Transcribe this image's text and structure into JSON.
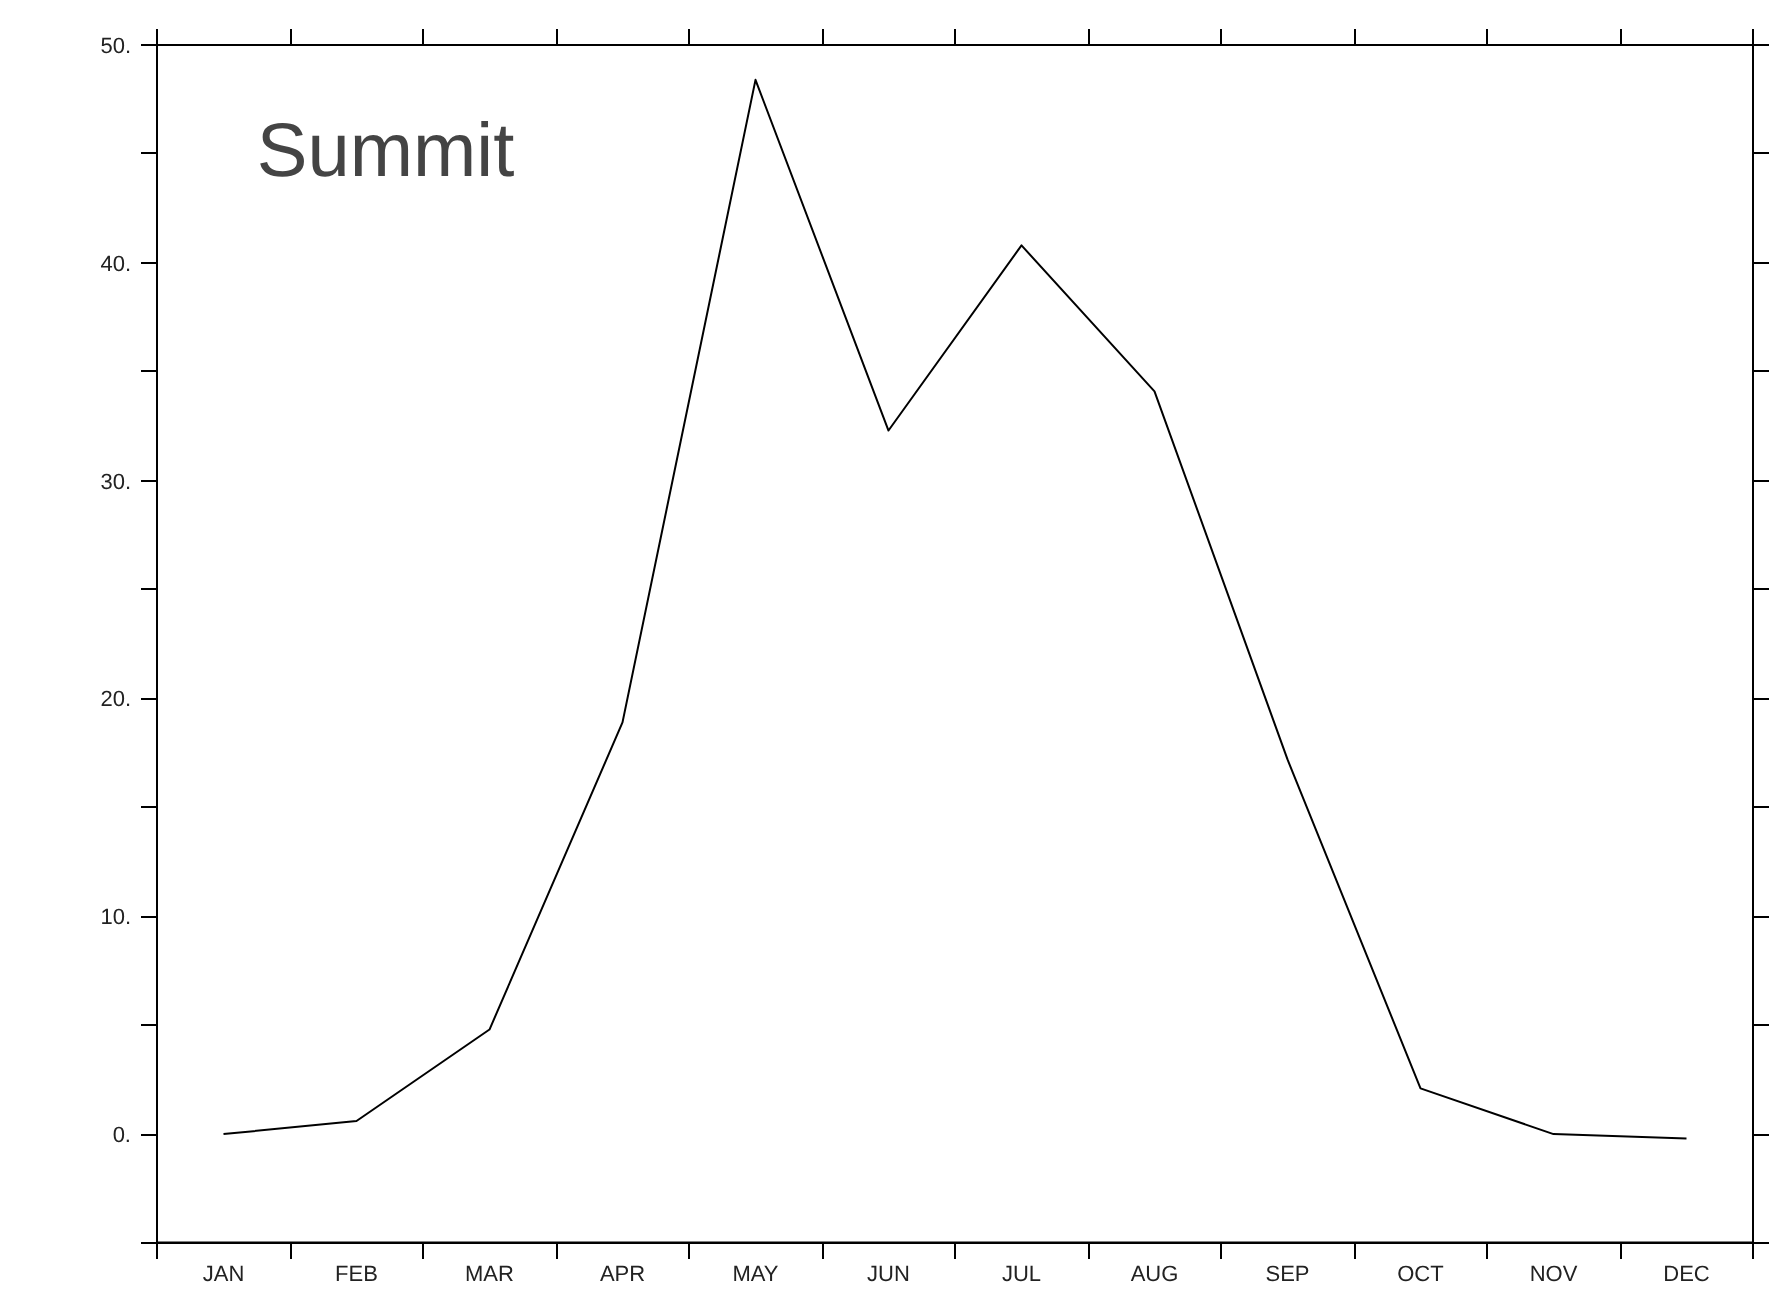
{
  "chart_data": {
    "type": "line",
    "title": "Summit",
    "categories": [
      "JAN",
      "FEB",
      "MAR",
      "APR",
      "MAY",
      "JUN",
      "JUL",
      "AUG",
      "SEP",
      "OCT",
      "NOV",
      "DEC"
    ],
    "series": [
      {
        "color": "#000000",
        "values": [
          0,
          0.6,
          4.8,
          18.9,
          48.4,
          32.3,
          40.8,
          34.1,
          17.2,
          2.1,
          0,
          -0.2
        ]
      }
    ],
    "ylim": [
      -5,
      50
    ],
    "yticks": [
      {
        "value": -5,
        "label": null
      },
      {
        "value": 0,
        "label": "0."
      },
      {
        "value": 5,
        "label": null
      },
      {
        "value": 10,
        "label": "10."
      },
      {
        "value": 15,
        "label": null
      },
      {
        "value": 20,
        "label": "20."
      },
      {
        "value": 25,
        "label": null
      },
      {
        "value": 30,
        "label": "30."
      },
      {
        "value": 35,
        "label": null
      },
      {
        "value": 40,
        "label": "40."
      },
      {
        "value": 45,
        "label": null
      },
      {
        "value": 50,
        "label": "50."
      }
    ],
    "grid": false,
    "line_style": "solid",
    "marker": "none"
  }
}
